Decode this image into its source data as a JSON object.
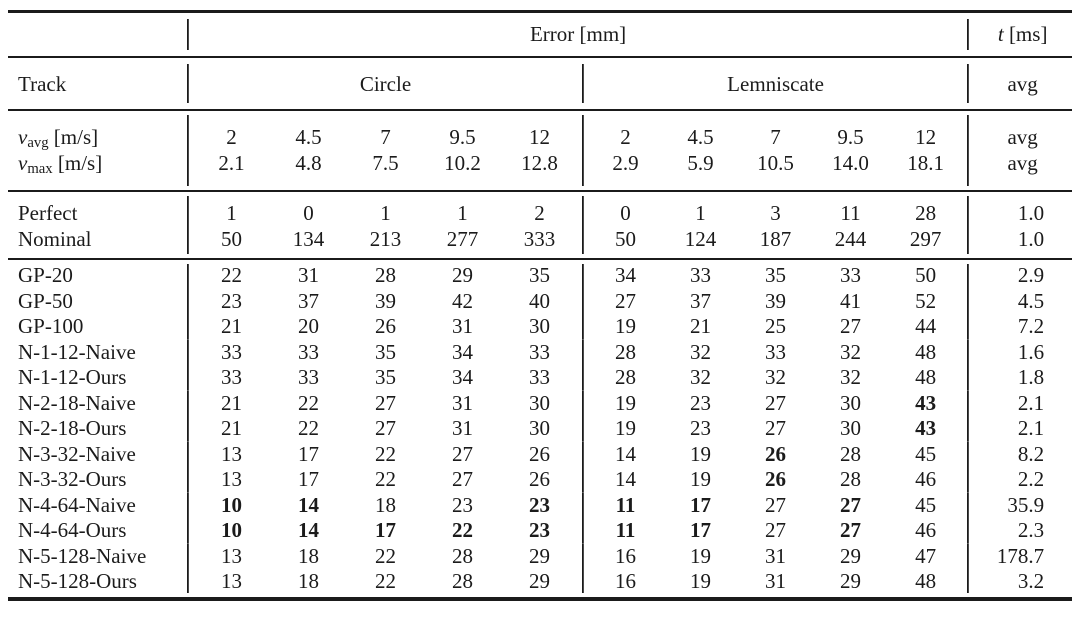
{
  "header": {
    "error_label": "Error [mm]",
    "time_var": "t",
    "time_unit": " [ms]",
    "track_label": "Track",
    "circle_label": "Circle",
    "lemniscate_label": "Lemniscate",
    "avg_label": "avg"
  },
  "velocity_rows": [
    {
      "var": "v",
      "sub": "avg",
      "unit": " [m/s]",
      "circle": [
        "2",
        "4.5",
        "7",
        "9.5",
        "12"
      ],
      "lemniscate": [
        "2",
        "4.5",
        "7",
        "9.5",
        "12"
      ],
      "t": "avg"
    },
    {
      "var": "v",
      "sub": "max",
      "unit": " [m/s]",
      "circle": [
        "2.1",
        "4.8",
        "7.5",
        "10.2",
        "12.8"
      ],
      "lemniscate": [
        "2.9",
        "5.9",
        "10.5",
        "14.0",
        "18.1"
      ],
      "t": "avg"
    }
  ],
  "baseline_rows": [
    {
      "label": "Perfect",
      "circle": [
        "1",
        "0",
        "1",
        "1",
        "2"
      ],
      "lemniscate": [
        "0",
        "1",
        "3",
        "11",
        "28"
      ],
      "t": "1.0",
      "bold_c": [],
      "bold_l": []
    },
    {
      "label": "Nominal",
      "circle": [
        "50",
        "134",
        "213",
        "277",
        "333"
      ],
      "lemniscate": [
        "50",
        "124",
        "187",
        "244",
        "297"
      ],
      "t": "1.0",
      "bold_c": [],
      "bold_l": []
    }
  ],
  "method_rows": [
    {
      "label": "GP-20",
      "circle": [
        "22",
        "31",
        "28",
        "29",
        "35"
      ],
      "lemniscate": [
        "34",
        "33",
        "35",
        "33",
        "50"
      ],
      "t": "2.9",
      "bold_c": [],
      "bold_l": []
    },
    {
      "label": "GP-50",
      "circle": [
        "23",
        "37",
        "39",
        "42",
        "40"
      ],
      "lemniscate": [
        "27",
        "37",
        "39",
        "41",
        "52"
      ],
      "t": "4.5",
      "bold_c": [],
      "bold_l": []
    },
    {
      "label": "GP-100",
      "circle": [
        "21",
        "20",
        "26",
        "31",
        "30"
      ],
      "lemniscate": [
        "19",
        "21",
        "25",
        "27",
        "44"
      ],
      "t": "7.2",
      "bold_c": [],
      "bold_l": []
    },
    {
      "label": "N-1-12-Naive",
      "circle": [
        "33",
        "33",
        "35",
        "34",
        "33"
      ],
      "lemniscate": [
        "28",
        "32",
        "33",
        "32",
        "48"
      ],
      "t": "1.6",
      "bold_c": [],
      "bold_l": []
    },
    {
      "label": "N-1-12-Ours",
      "circle": [
        "33",
        "33",
        "35",
        "34",
        "33"
      ],
      "lemniscate": [
        "28",
        "32",
        "32",
        "32",
        "48"
      ],
      "t": "1.8",
      "bold_c": [],
      "bold_l": []
    },
    {
      "label": "N-2-18-Naive",
      "circle": [
        "21",
        "22",
        "27",
        "31",
        "30"
      ],
      "lemniscate": [
        "19",
        "23",
        "27",
        "30",
        "43"
      ],
      "t": "2.1",
      "bold_c": [],
      "bold_l": [
        4
      ]
    },
    {
      "label": "N-2-18-Ours",
      "circle": [
        "21",
        "22",
        "27",
        "31",
        "30"
      ],
      "lemniscate": [
        "19",
        "23",
        "27",
        "30",
        "43"
      ],
      "t": "2.1",
      "bold_c": [],
      "bold_l": [
        4
      ]
    },
    {
      "label": "N-3-32-Naive",
      "circle": [
        "13",
        "17",
        "22",
        "27",
        "26"
      ],
      "lemniscate": [
        "14",
        "19",
        "26",
        "28",
        "45"
      ],
      "t": "8.2",
      "bold_c": [],
      "bold_l": [
        2
      ]
    },
    {
      "label": "N-3-32-Ours",
      "circle": [
        "13",
        "17",
        "22",
        "27",
        "26"
      ],
      "lemniscate": [
        "14",
        "19",
        "26",
        "28",
        "46"
      ],
      "t": "2.2",
      "bold_c": [],
      "bold_l": [
        2
      ]
    },
    {
      "label": "N-4-64-Naive",
      "circle": [
        "10",
        "14",
        "18",
        "23",
        "23"
      ],
      "lemniscate": [
        "11",
        "17",
        "27",
        "27",
        "45"
      ],
      "t": "35.9",
      "bold_c": [
        0,
        1,
        4
      ],
      "bold_l": [
        0,
        1,
        3
      ]
    },
    {
      "label": "N-4-64-Ours",
      "circle": [
        "10",
        "14",
        "17",
        "22",
        "23"
      ],
      "lemniscate": [
        "11",
        "17",
        "27",
        "27",
        "46"
      ],
      "t": "2.3",
      "bold_c": [
        0,
        1,
        2,
        3,
        4
      ],
      "bold_l": [
        0,
        1,
        3
      ]
    },
    {
      "label": "N-5-128-Naive",
      "circle": [
        "13",
        "18",
        "22",
        "28",
        "29"
      ],
      "lemniscate": [
        "16",
        "19",
        "31",
        "29",
        "47"
      ],
      "t": "178.7",
      "bold_c": [],
      "bold_l": []
    },
    {
      "label": "N-5-128-Ours",
      "circle": [
        "13",
        "18",
        "22",
        "28",
        "29"
      ],
      "lemniscate": [
        "16",
        "19",
        "31",
        "29",
        "48"
      ],
      "t": "3.2",
      "bold_c": [],
      "bold_l": []
    }
  ]
}
